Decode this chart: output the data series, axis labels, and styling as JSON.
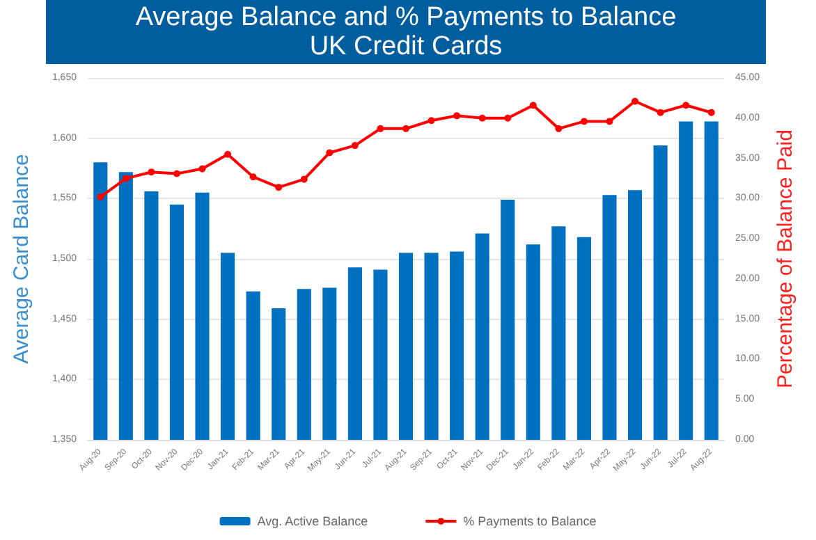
{
  "chart_data": {
    "type": "bar",
    "title": "Average Balance and % Payments to Balance",
    "subtitle": "UK Credit Cards",
    "categories": [
      "Aug-20",
      "Sep-20",
      "Oct-20",
      "Nov-20",
      "Dec-20",
      "Jan-21",
      "Feb-21",
      "Mar-21",
      "Apr-21",
      "May-21",
      "Jun-21",
      "Jul-21",
      "Aug-21",
      "Sep-21",
      "Oct-21",
      "Nov-21",
      "Dec-21",
      "Jan-22",
      "Feb-22",
      "Mar-22",
      "Apr-22",
      "May-22",
      "Jun-22",
      "Jul-22",
      "Aug-22"
    ],
    "series": [
      {
        "name": "Avg. Active Balance",
        "color": "#0070c0",
        "values": [
          1580,
          1572,
          1556,
          1545,
          1555,
          1505,
          1473,
          1459,
          1475,
          1476,
          1493,
          1491,
          1505,
          1505,
          1506,
          1521,
          1549,
          1512,
          1527,
          1518,
          1553,
          1557,
          1594,
          1614,
          1614
        ]
      },
      {
        "name": "% Payments to Balance",
        "type": "line",
        "axis": "y2",
        "color": "#ff0000",
        "values": [
          30.2,
          32.5,
          33.3,
          33.1,
          33.7,
          35.5,
          32.7,
          31.4,
          32.4,
          35.7,
          36.6,
          38.7,
          38.7,
          39.7,
          40.3,
          40.0,
          40.0,
          41.6,
          38.7,
          39.6,
          39.6,
          42.1,
          40.7,
          41.6,
          40.7
        ]
      }
    ],
    "ylabel": "Average Card Balance",
    "y2label": "Percentage of Balance Paid",
    "ylim": [
      1350,
      1650
    ],
    "yticks": [
      {
        "value": 1350,
        "label": "1,350"
      },
      {
        "value": 1400,
        "label": "1,400"
      },
      {
        "value": 1450,
        "label": "1,450"
      },
      {
        "value": 1500,
        "label": "1,500"
      },
      {
        "value": 1550,
        "label": "1,550"
      },
      {
        "value": 1600,
        "label": "1,600"
      },
      {
        "value": 1650,
        "label": "1,650"
      }
    ],
    "y2lim": [
      0,
      45
    ],
    "y2ticks": [
      {
        "value": 0,
        "label": "0.00"
      },
      {
        "value": 5,
        "label": "5.00"
      },
      {
        "value": 10,
        "label": "10.00"
      },
      {
        "value": 15,
        "label": "15.00"
      },
      {
        "value": 20,
        "label": "20.00"
      },
      {
        "value": 25,
        "label": "25.00"
      },
      {
        "value": 30,
        "label": "30.00"
      },
      {
        "value": 35,
        "label": "35.00"
      },
      {
        "value": 40,
        "label": "40.00"
      },
      {
        "value": 45,
        "label": "45.00"
      }
    ],
    "grid": "y",
    "legend": "bottom",
    "marker": "circle",
    "line_style": "solid"
  }
}
